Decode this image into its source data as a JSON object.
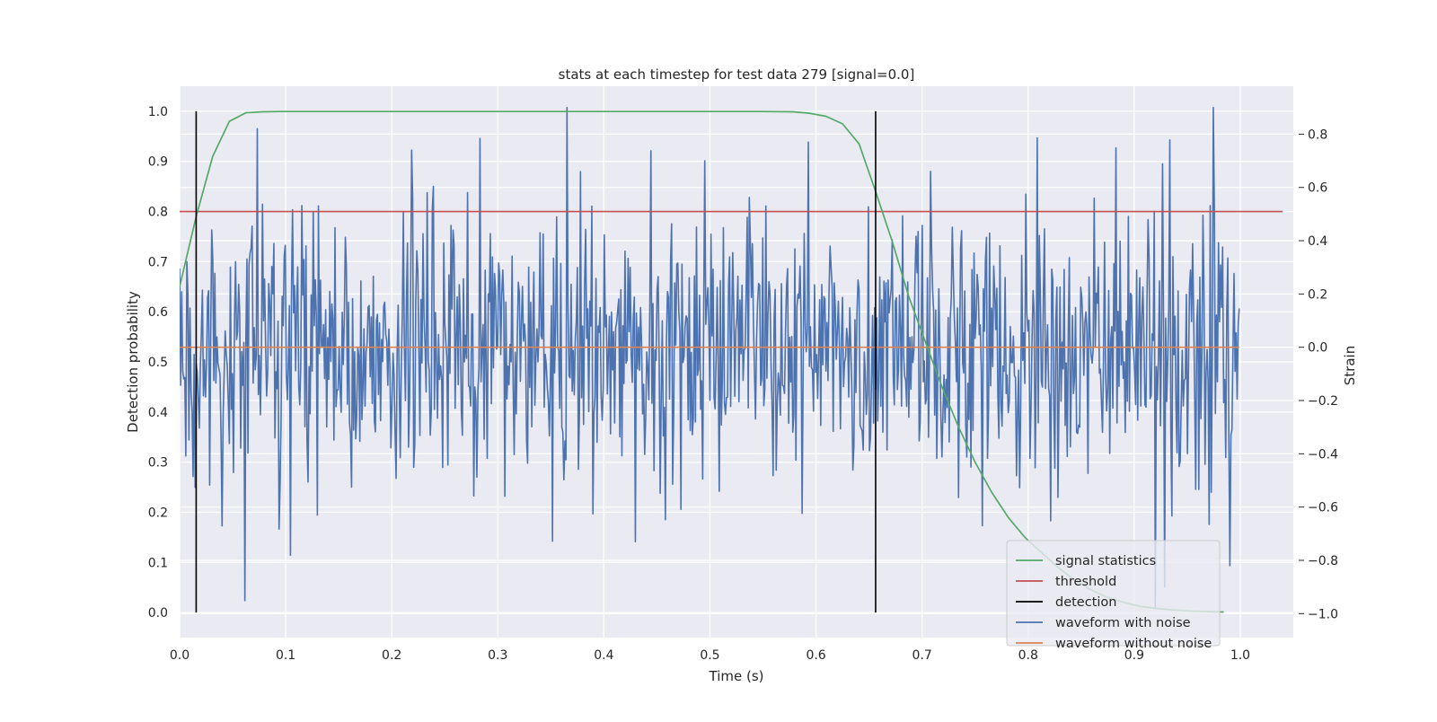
{
  "chart_data": {
    "type": "line",
    "title": "stats at each timestep for test data 279 [signal=0.0]",
    "xlabel": "Time (s)",
    "ylabel": "Detection probability",
    "y2label": "Strain",
    "xlim": [
      0.0,
      1.05
    ],
    "ylim": [
      -0.05,
      1.05
    ],
    "y2lim": [
      -1.09,
      0.98
    ],
    "grid": true,
    "legend_position": "lower-right",
    "x_ticks": [
      "0.0",
      "0.1",
      "0.2",
      "0.3",
      "0.4",
      "0.5",
      "0.6",
      "0.7",
      "0.8",
      "0.9",
      "1.0"
    ],
    "y_ticks": [
      "0.0",
      "0.1",
      "0.2",
      "0.3",
      "0.4",
      "0.5",
      "0.6",
      "0.7",
      "0.8",
      "0.9",
      "1.0"
    ],
    "y2_ticks": [
      "−1.0",
      "−0.8",
      "−0.6",
      "−0.4",
      "−0.2",
      "0.0",
      "0.2",
      "0.4",
      "0.6",
      "0.8"
    ],
    "colors": {
      "background": "#eaeaf2",
      "grid": "#ffffff",
      "signal_statistics": "#55a868",
      "threshold": "#c44e52",
      "detection": "#000000",
      "waveform_with_noise": "#4c72b0",
      "waveform_without_noise": "#dd8452"
    },
    "series": [
      {
        "name": "signal statistics",
        "axis": "left",
        "x": [
          0.0,
          0.0156,
          0.0312,
          0.0469,
          0.0625,
          0.0781,
          0.0938,
          0.1094,
          0.125,
          0.2,
          0.3,
          0.4,
          0.5,
          0.55,
          0.5781,
          0.5938,
          0.6094,
          0.625,
          0.6406,
          0.6562,
          0.6719,
          0.6875,
          0.7031,
          0.7188,
          0.7344,
          0.75,
          0.7656,
          0.7812,
          0.7969,
          0.8125,
          0.8281,
          0.8438,
          0.8594,
          0.875,
          0.8906,
          0.9062,
          0.9219,
          0.9375,
          0.9531,
          0.9688,
          0.9844
        ],
        "values": [
          0.65,
          0.79,
          0.91,
          0.98,
          0.997,
          0.999,
          0.9995,
          0.9995,
          0.9995,
          0.9995,
          0.9995,
          0.9995,
          0.9995,
          0.9995,
          0.999,
          0.996,
          0.99,
          0.975,
          0.935,
          0.84,
          0.74,
          0.63,
          0.54,
          0.45,
          0.37,
          0.3,
          0.24,
          0.19,
          0.15,
          0.12,
          0.09,
          0.065,
          0.045,
          0.03,
          0.02,
          0.012,
          0.008,
          0.005,
          0.003,
          0.002,
          0.001
        ]
      },
      {
        "name": "threshold",
        "axis": "left",
        "x": [
          0.0,
          1.04
        ],
        "values": [
          0.8,
          0.8
        ]
      },
      {
        "name": "detection",
        "axis": "left",
        "x": [
          0.0156,
          0.6562
        ],
        "ymin": 0.0,
        "ymax": 1.0
      },
      {
        "name": "waveform with noise",
        "axis": "right",
        "x_range": [
          0.0,
          0.999
        ],
        "count": 1024,
        "amplitude_std": 0.26,
        "min": -0.98,
        "max": 0.9,
        "peaks": [
          {
            "x": 0.073,
            "value": 0.82
          },
          {
            "x": 0.13,
            "value": -0.63
          },
          {
            "x": 0.219,
            "value": 0.74
          },
          {
            "x": 0.365,
            "value": 0.9
          },
          {
            "x": 0.43,
            "value": -0.73
          },
          {
            "x": 0.495,
            "value": 0.7
          },
          {
            "x": 0.593,
            "value": 0.77
          },
          {
            "x": 0.757,
            "value": -0.67
          },
          {
            "x": 0.92,
            "value": -0.98
          },
          {
            "x": 0.929,
            "value": -0.9
          },
          {
            "x": 0.99,
            "value": -0.82
          }
        ]
      },
      {
        "name": "waveform without noise",
        "axis": "right",
        "x": [
          0.0,
          0.999
        ],
        "values": [
          0.0,
          0.0
        ]
      }
    ],
    "legend": [
      "signal statistics",
      "threshold",
      "detection",
      "waveform with noise",
      "waveform without noise"
    ]
  }
}
